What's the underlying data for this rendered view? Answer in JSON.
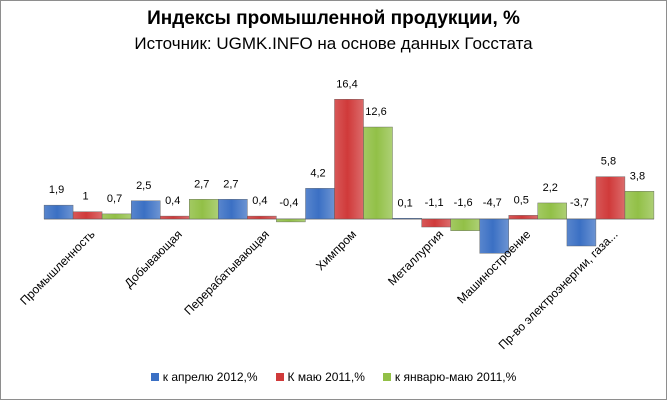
{
  "chart_data": {
    "type": "bar",
    "title": "Индексы промышленной продукции, %",
    "subtitle": "Источник: UGMK.INFO на основе данных Госстата",
    "categories": [
      "Промышленность",
      "Добывающая",
      "Перерабатывающая",
      "Химпром",
      "Металлургия",
      "Машиностроение",
      "Пр-во электроэнергии, газа..."
    ],
    "series": [
      {
        "name": "к апрелю 2012,%",
        "color": "#3b70c4",
        "values": [
          1.9,
          2.5,
          2.7,
          4.2,
          0.1,
          -4.7,
          -3.7
        ]
      },
      {
        "name": "К маю 2011,%",
        "color": "#d03a3a",
        "values": [
          1.0,
          0.4,
          0.4,
          16.4,
          -1.1,
          0.5,
          5.8
        ]
      },
      {
        "name": "к январю-маю 2011,%",
        "color": "#92c047",
        "values": [
          0.7,
          2.7,
          -0.4,
          12.6,
          -1.6,
          2.2,
          3.8
        ]
      }
    ],
    "data_labels": [
      [
        "1,9",
        "2,5",
        "2,7",
        "4,2",
        "0,1",
        "-4,7",
        "-3,7"
      ],
      [
        "1",
        "0,4",
        "0,4",
        "16,4",
        "-1,1",
        "0,5",
        "5,8"
      ],
      [
        "0,7",
        "2,7",
        "-0,4",
        "12,6",
        "-1,6",
        "2,2",
        "3,8"
      ]
    ],
    "legend_position": "bottom",
    "grid": false
  }
}
